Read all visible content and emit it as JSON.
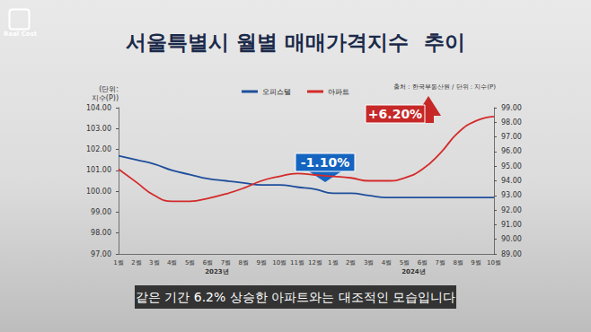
{
  "chart_data": {
    "type": "line",
    "title": "서울특별시 월별 매매가격지수  추이",
    "source": "출처 : 한국부동산원 / 단위 : 지수(P)",
    "y_label": "(단위:\n지수(P))",
    "categories": [
      "1월",
      "2월",
      "3월",
      "4월",
      "5월",
      "6월",
      "7월",
      "8월",
      "9월",
      "10월",
      "11월",
      "12월",
      "1월",
      "2월",
      "3월",
      "4월",
      "5월",
      "6월",
      "7월",
      "8월",
      "9월",
      "10월"
    ],
    "year_groups": [
      {
        "label": "2023년",
        "start": 0,
        "end": 11
      },
      {
        "label": "2024년",
        "start": 12,
        "end": 21
      }
    ],
    "series": [
      {
        "name": "오피스텔",
        "color": "#1f4e9c",
        "values": [
          101.7,
          101.5,
          101.3,
          101.0,
          100.8,
          100.6,
          100.5,
          100.4,
          100.3,
          100.3,
          100.2,
          100.1,
          99.9,
          99.9,
          99.8,
          99.7,
          99.7,
          99.7,
          99.7,
          99.7,
          99.7,
          99.7
        ]
      },
      {
        "name": "아파트",
        "color": "#d42a2a",
        "axis": "y2",
        "values": [
          94.8,
          93.9,
          93.0,
          92.6,
          92.6,
          92.8,
          93.1,
          93.5,
          94.0,
          94.3,
          94.5,
          94.4,
          94.3,
          94.2,
          94.0,
          94.0,
          94.2,
          94.8,
          95.9,
          97.3,
          98.1,
          98.4
        ]
      }
    ],
    "ylim": [
      97,
      104
    ],
    "yticks": [
      {
        "value": 97,
        "label": "97.00"
      },
      {
        "value": 98,
        "label": "98.00"
      },
      {
        "value": 99,
        "label": "99.00"
      },
      {
        "value": 100,
        "label": "100.00"
      },
      {
        "value": 101,
        "label": "101.00"
      },
      {
        "value": 102,
        "label": "102.00"
      },
      {
        "value": 103,
        "label": "103.00"
      },
      {
        "value": 104,
        "label": "104.00"
      }
    ],
    "y2lim": [
      89,
      99
    ],
    "y2ticks": [
      {
        "value": 89,
        "label": "89.00"
      },
      {
        "value": 90,
        "label": "90.00"
      },
      {
        "value": 91,
        "label": "91.00"
      },
      {
        "value": 92,
        "label": "92.00"
      },
      {
        "value": 93,
        "label": "93.00"
      },
      {
        "value": 94,
        "label": "94.00"
      },
      {
        "value": 95,
        "label": "95.00"
      },
      {
        "value": 96,
        "label": "96.00"
      },
      {
        "value": 97,
        "label": "97.00"
      },
      {
        "value": 98,
        "label": "98.00"
      },
      {
        "value": 99,
        "label": "99.00"
      }
    ],
    "annotations": [
      {
        "text": "+6.20%",
        "series": "아파트",
        "color": "#c62828"
      },
      {
        "text": "-1.10%",
        "series": "오피스텔",
        "color": "#1565c0"
      }
    ],
    "caption": "같은 기간 6.2% 상승한 아파트와는 대조적인 모습입니다",
    "logo": "Real Cost",
    "legend": "top",
    "grid": false
  }
}
